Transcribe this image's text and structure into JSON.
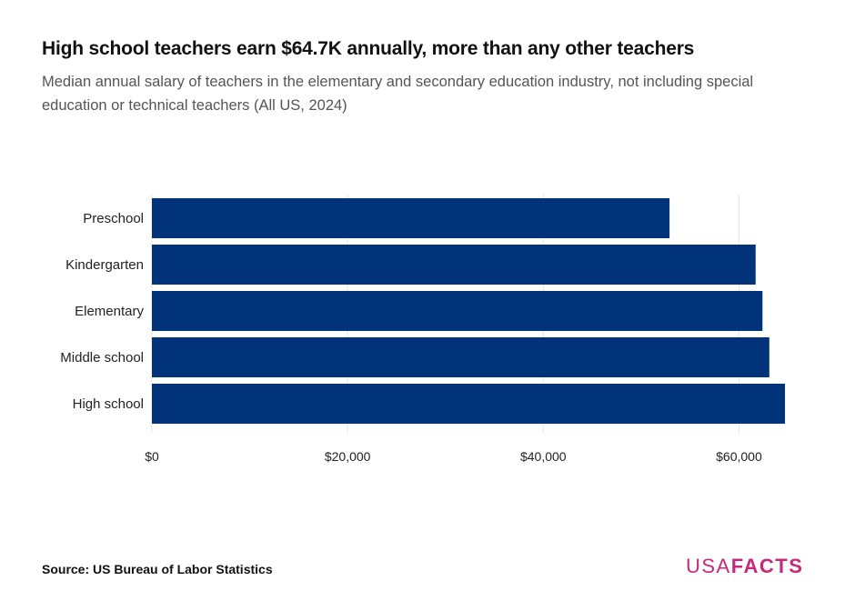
{
  "header": {
    "title": "High school teachers earn $64.7K annually, more than any other teachers",
    "subtitle": "Median annual salary of teachers in the elementary and secondary education industry, not including special education or technical teachers (All US, 2024)"
  },
  "footer": {
    "source_label": "Source:",
    "source_text": "US Bureau of Labor Statistics",
    "logo_usa": "USA",
    "logo_facts": "FACTS"
  },
  "colors": {
    "bar": "#01337a",
    "grid": "#e6e6e6",
    "axis_text": "#222222",
    "brand": "#c6297a"
  },
  "chart_data": {
    "type": "bar",
    "orientation": "horizontal",
    "categories": [
      "Preschool",
      "Kindergarten",
      "Elementary",
      "Middle school",
      "High school"
    ],
    "values": [
      52900,
      61700,
      62400,
      63100,
      64700
    ],
    "xlim": [
      0,
      66000
    ],
    "x_ticks": [
      0,
      20000,
      40000,
      60000
    ],
    "x_tick_labels": [
      "$0",
      "$20,000",
      "$40,000",
      "$60,000"
    ],
    "grid": true,
    "legend": "none"
  }
}
